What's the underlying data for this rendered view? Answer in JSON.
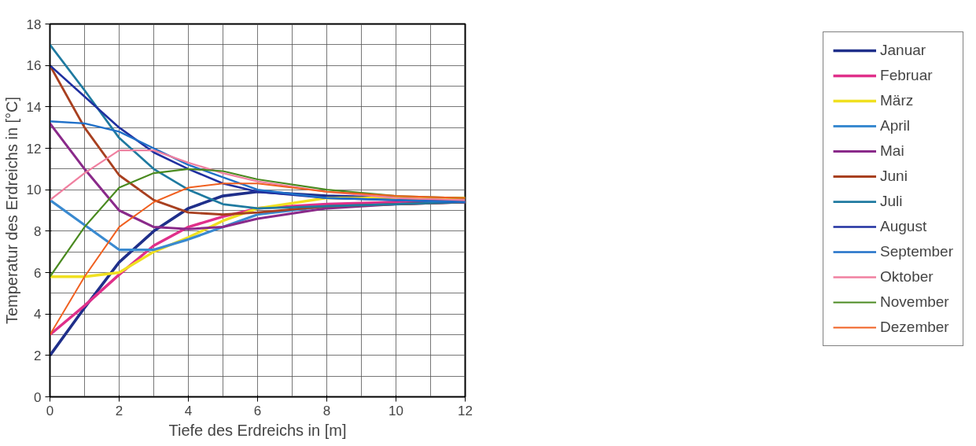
{
  "chart_data": {
    "type": "line",
    "xlabel": "Tiefe des Erdreichs in [m]",
    "ylabel": "Temperatur des Erdreichs in [°C]",
    "x": [
      0,
      1,
      2,
      3,
      4,
      5,
      6,
      8,
      10,
      12
    ],
    "xlim": [
      0,
      12
    ],
    "xticks": [
      0,
      2,
      4,
      6,
      8,
      10,
      12
    ],
    "ylim": [
      0,
      18
    ],
    "yticks": [
      0,
      2,
      4,
      6,
      8,
      10,
      12,
      14,
      16,
      18
    ],
    "grid": true,
    "legend": "right",
    "marker": "none",
    "line_style": "solid",
    "series": [
      {
        "name": "Januar",
        "color": "#1f2f8a",
        "values": [
          2,
          4.3,
          6.5,
          8.0,
          9.1,
          9.7,
          9.9,
          9.7,
          9.6,
          9.5
        ]
      },
      {
        "name": "Februar",
        "color": "#e0308a",
        "values": [
          3,
          4.4,
          5.9,
          7.3,
          8.2,
          8.7,
          9.1,
          9.3,
          9.4,
          9.4
        ]
      },
      {
        "name": "März",
        "color": "#f0e020",
        "values": [
          5.8,
          5.8,
          6.0,
          7.0,
          7.7,
          8.5,
          9.1,
          9.6,
          9.6,
          9.6
        ]
      },
      {
        "name": "April",
        "color": "#3a8ad0",
        "values": [
          9.5,
          8.3,
          7.1,
          7.1,
          7.6,
          8.2,
          8.8,
          9.2,
          9.3,
          9.4
        ]
      },
      {
        "name": "Mai",
        "color": "#8a2a8a",
        "values": [
          13.2,
          11.0,
          9.0,
          8.2,
          8.1,
          8.2,
          8.6,
          9.1,
          9.3,
          9.4
        ]
      },
      {
        "name": "Juni",
        "color": "#a84020",
        "values": [
          16,
          13.0,
          10.7,
          9.5,
          8.9,
          8.8,
          8.9,
          9.2,
          9.3,
          9.4
        ]
      },
      {
        "name": "Juli",
        "color": "#1f7aa0",
        "values": [
          17,
          14.8,
          12.5,
          11.0,
          10.0,
          9.3,
          9.1,
          9.2,
          9.3,
          9.4
        ]
      },
      {
        "name": "August",
        "color": "#2030a0",
        "values": [
          16,
          14.5,
          13.0,
          11.8,
          11.0,
          10.3,
          9.9,
          9.6,
          9.5,
          9.4
        ]
      },
      {
        "name": "September",
        "color": "#2070c8",
        "values": [
          13.3,
          13.2,
          12.8,
          12.0,
          11.2,
          10.6,
          10.0,
          9.6,
          9.5,
          9.4
        ]
      },
      {
        "name": "Oktober",
        "color": "#f080a0",
        "values": [
          9.5,
          10.8,
          11.9,
          11.9,
          11.3,
          10.8,
          10.4,
          9.9,
          9.6,
          9.5
        ]
      },
      {
        "name": "November",
        "color": "#4a8a20",
        "values": [
          5.8,
          8.2,
          10.1,
          10.8,
          11.0,
          10.9,
          10.5,
          10.0,
          9.7,
          9.6
        ]
      },
      {
        "name": "Dezember",
        "color": "#f06020",
        "values": [
          3,
          5.8,
          8.2,
          9.4,
          10.1,
          10.3,
          10.3,
          9.9,
          9.7,
          9.6
        ]
      }
    ]
  }
}
